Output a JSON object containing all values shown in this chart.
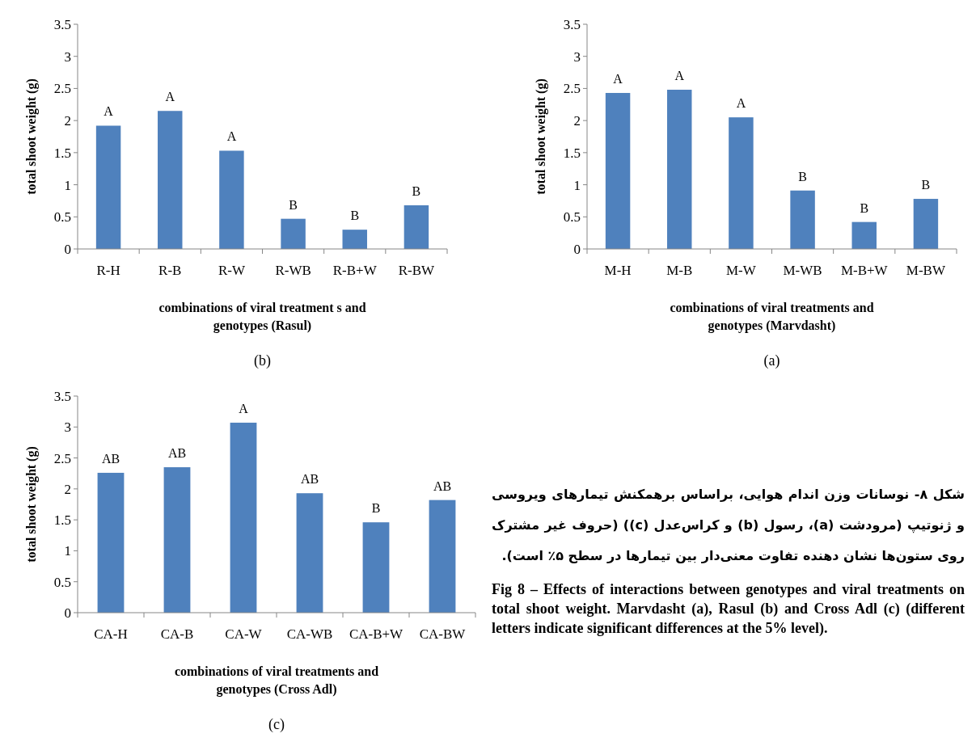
{
  "chart_data": [
    {
      "type": "bar",
      "title": "(b)",
      "xlabel": "combinations of  viral treatment s and genotypes (Rasul)",
      "ylabel": "total shoot weight (g)",
      "categories": [
        "R-H",
        "R-B",
        "R-W",
        "R-WB",
        "R-B+W",
        "R-BW"
      ],
      "values": [
        1.92,
        2.15,
        1.53,
        0.47,
        0.3,
        0.68
      ],
      "color": "#4f81bd",
      "ylim": [
        0,
        3.5
      ],
      "yticks": [
        0,
        0.5,
        1,
        1.5,
        2,
        2.5,
        3,
        3.5
      ],
      "annotations": [
        {
          "text": "A",
          "x": "R-H",
          "y": 1.92
        },
        {
          "text": "A",
          "x": "R-B",
          "y": 2.15
        },
        {
          "text": "A",
          "x": "R-W",
          "y": 1.53
        },
        {
          "text": "B",
          "x": "R-WB",
          "y": 0.47
        },
        {
          "text": "B",
          "x": "R-B+W",
          "y": 0.3
        },
        {
          "text": "B",
          "x": "R-BW",
          "y": 0.68
        }
      ]
    },
    {
      "type": "bar",
      "title": "(a)",
      "xlabel": "combinations of viral treatments and genotypes (Marvdasht)",
      "ylabel": "total shoot weight (g)",
      "categories": [
        "M-H",
        "M-B",
        "M-W",
        "M-WB",
        "M-B+W",
        "M-BW"
      ],
      "values": [
        2.43,
        2.48,
        2.05,
        0.91,
        0.42,
        0.78
      ],
      "color": "#4f81bd",
      "ylim": [
        0,
        3.5
      ],
      "yticks": [
        0,
        0.5,
        1,
        1.5,
        2,
        2.5,
        3,
        3.5
      ],
      "annotations": [
        {
          "text": "A",
          "x": "M-H",
          "y": 2.43
        },
        {
          "text": "A",
          "x": "M-B",
          "y": 2.48
        },
        {
          "text": "A",
          "x": "M-W",
          "y": 2.05
        },
        {
          "text": "B",
          "x": "M-WB",
          "y": 0.91
        },
        {
          "text": "B",
          "x": "M-B+W",
          "y": 0.42
        },
        {
          "text": "B",
          "x": "M-BW",
          "y": 0.78
        }
      ]
    },
    {
      "type": "bar",
      "title": "(c)",
      "xlabel": "combinations of viral treatments and genotypes (Cross Adl)",
      "ylabel": "total shoot weight (g)",
      "categories": [
        "CA-H",
        "CA-B",
        "CA-W",
        "CA-WB",
        "CA-B+W",
        "CA-BW"
      ],
      "values": [
        2.26,
        2.35,
        3.07,
        1.93,
        1.46,
        1.82
      ],
      "color": "#4f81bd",
      "ylim": [
        0,
        3.5
      ],
      "yticks": [
        0,
        0.5,
        1,
        1.5,
        2,
        2.5,
        3,
        3.5
      ],
      "annotations": [
        {
          "text": "AB",
          "x": "CA-H",
          "y": 2.26
        },
        {
          "text": "AB",
          "x": "CA-B",
          "y": 2.35
        },
        {
          "text": "A",
          "x": "CA-W",
          "y": 3.07
        },
        {
          "text": "AB",
          "x": "CA-WB",
          "y": 1.93
        },
        {
          "text": "B",
          "x": "CA-B+W",
          "y": 1.46
        },
        {
          "text": "AB",
          "x": "CA-BW",
          "y": 1.82
        }
      ]
    },
    {
      "type": "other",
      "annotations": [
        "شکل ۸- نوسانات وزن اندام هوایی، براساس برهمکنش تیمارهای ویروسی و ژنوتیپ (مرودشت (a)، رسول (b) و کراس‌عدل (c)) (حروف غیر مشترک روی ستون‌ها نشان دهنده تفاوت معنی‌دار بین تیمارها در سطح ۵٪ است).",
        "Fig 8 – Effects of interactions between genotypes and viral treatments on total shoot weight. Marvdasht (a), Rasul (b) and Cross Adl (c) (different letters indicate significant differences at the 5% level)."
      ]
    }
  ]
}
